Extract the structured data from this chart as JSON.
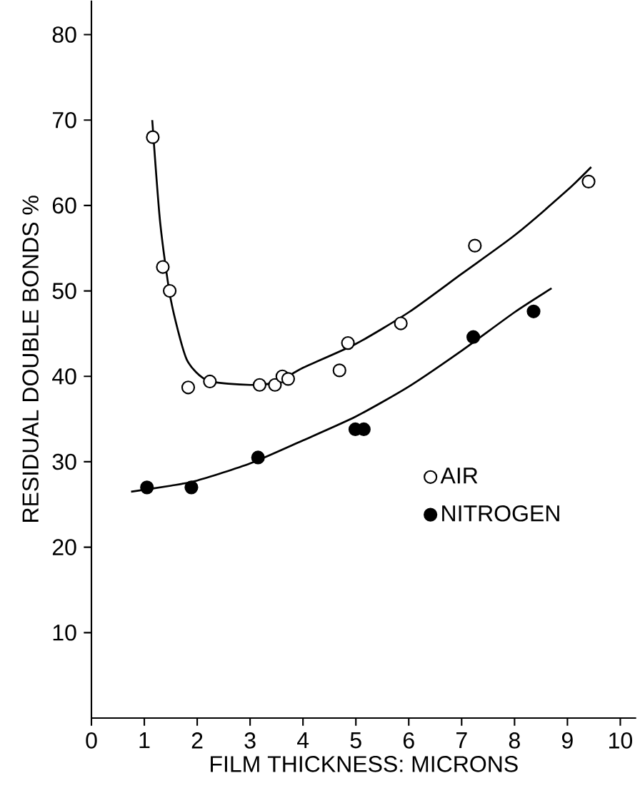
{
  "chart_data": {
    "type": "scatter",
    "xlabel": "FILM THICKNESS: MICRONS",
    "ylabel": "RESIDUAL DOUBLE BONDS %",
    "xlim": [
      0,
      10.3
    ],
    "ylim": [
      0,
      84
    ],
    "xticks": [
      0,
      1,
      2,
      3,
      4,
      5,
      6,
      7,
      8,
      9,
      10
    ],
    "yticks": [
      10,
      20,
      30,
      40,
      50,
      60,
      70,
      80
    ],
    "grid": false,
    "legend": "right",
    "series": [
      {
        "name": "AIR",
        "marker": "circle",
        "color": "#ffffff",
        "x": [
          1.16,
          1.35,
          1.48,
          1.83,
          2.24,
          3.18,
          3.47,
          3.61,
          3.72,
          4.69,
          4.85,
          5.85,
          7.25,
          9.4
        ],
        "values": [
          68.0,
          52.8,
          50.0,
          38.7,
          39.4,
          39.0,
          39.0,
          40.0,
          39.7,
          40.7,
          43.9,
          46.2,
          55.3,
          62.8
        ]
      },
      {
        "name": "NITROGEN",
        "marker": "circle",
        "color": "#000000",
        "x": [
          1.05,
          1.89,
          3.15,
          4.99,
          5.15,
          7.22,
          8.36
        ],
        "values": [
          27.0,
          27.0,
          30.5,
          33.8,
          33.8,
          44.6,
          47.6
        ]
      },
      {
        "type": "line",
        "marker": "none",
        "color": "#000000",
        "x": [
          1.15,
          1.3,
          1.5,
          1.8,
          2.2,
          3.0,
          3.5,
          4.0,
          5.0,
          6.0,
          7.0,
          8.0,
          9.0,
          9.45
        ],
        "values": [
          70,
          58,
          49,
          42,
          39.5,
          39,
          39.3,
          41,
          43.8,
          47.5,
          52,
          56.5,
          61.8,
          64.5
        ]
      },
      {
        "type": "line",
        "marker": "none",
        "color": "#000000",
        "x": [
          0.75,
          1.5,
          2.0,
          3.0,
          4.0,
          5.0,
          6.0,
          7.0,
          8.0,
          8.7
        ],
        "values": [
          26.5,
          27.2,
          27.8,
          29.8,
          32.5,
          35.3,
          38.8,
          43,
          47.5,
          50.3
        ]
      }
    ]
  }
}
